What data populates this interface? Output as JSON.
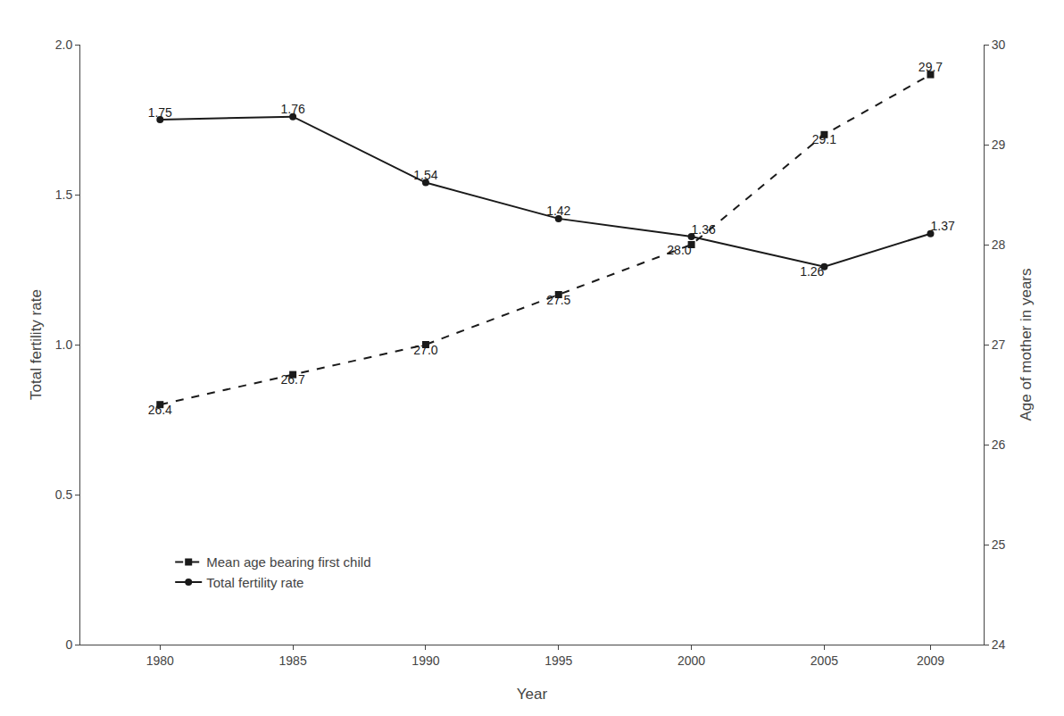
{
  "chart_data": {
    "type": "line",
    "x": [
      1980,
      1985,
      1990,
      1995,
      2000,
      2005,
      2009
    ],
    "xlim": [
      1977,
      2011
    ],
    "xticks": [
      1980,
      1985,
      1990,
      1995,
      2000,
      2005,
      2009
    ],
    "xlabel": "Year",
    "ylabel": "Total fertility rate",
    "y2label": "Age of mother in years",
    "ylim": [
      0,
      2
    ],
    "yticks": [
      0,
      0.5,
      {
        "value": 1,
        "label": "1.0"
      },
      1.5,
      {
        "value": 2,
        "label": "2.0"
      }
    ],
    "y2lim": [
      24,
      30
    ],
    "y2ticks": [
      24,
      25,
      26,
      27,
      28,
      29,
      30
    ],
    "grid": false,
    "legend": "lower left",
    "data_labels": true,
    "series": [
      {
        "name": "Total fertility rate",
        "color": "#1a1a1a",
        "line_style": "solid",
        "marker": "circle",
        "values": [
          1.75,
          1.76,
          1.54,
          1.42,
          1.36,
          1.26,
          1.37
        ],
        "value_labels": [
          "1.75",
          "1.76",
          "1.54",
          "1.42",
          "1.36",
          "1.26",
          "1.37"
        ]
      },
      {
        "name": "Mean age bearing first child",
        "color": "#1a1a1a",
        "line_style": "dashed",
        "marker": "square",
        "axis": "y2",
        "values": [
          26.4,
          26.7,
          27.0,
          27.5,
          28.0,
          29.1,
          29.7
        ],
        "value_labels": [
          "26.4",
          "26.7",
          "27.0",
          "27.5",
          "28.0",
          "29.1",
          "29.7"
        ]
      }
    ]
  }
}
